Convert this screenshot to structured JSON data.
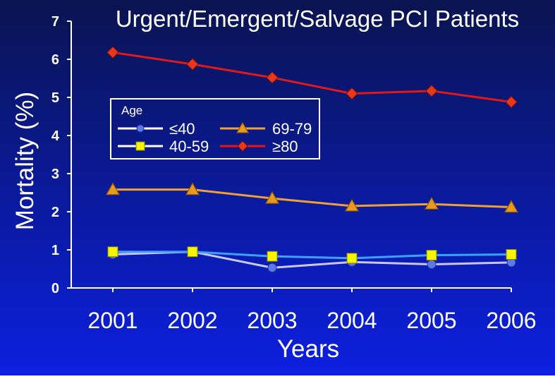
{
  "chart_data": {
    "type": "line",
    "title": "Urgent/Emergent/Salvage PCI Patients",
    "xlabel": "Years",
    "ylabel": "Mortality (%)",
    "x": [
      "2001",
      "2002",
      "2003",
      "2004",
      "2005",
      "2006"
    ],
    "yticks": [
      "0",
      "1",
      "2",
      "3",
      "4",
      "5",
      "6",
      "7"
    ],
    "ylim": [
      0,
      7
    ],
    "legend": {
      "title": "Age",
      "placement": "upper-left",
      "entries": [
        "≤40",
        "69-79",
        "40-59",
        "≥80"
      ]
    },
    "series": [
      {
        "name": "≤40",
        "values": [
          0.88,
          0.95,
          0.53,
          0.68,
          0.62,
          0.67
        ],
        "color": "#c8c8f0",
        "marker": "circle",
        "marker_color": "#5f78e8"
      },
      {
        "name": "40-59",
        "values": [
          0.95,
          0.95,
          0.83,
          0.78,
          0.86,
          0.88
        ],
        "color": "#3fa0ff",
        "marker": "square",
        "marker_color": "#f5f500"
      },
      {
        "name": "69-79",
        "values": [
          2.58,
          2.58,
          2.35,
          2.15,
          2.2,
          2.12
        ],
        "color": "#f0a030",
        "marker": "triangle",
        "marker_color": "#e89a20"
      },
      {
        "name": "≥80",
        "values": [
          6.18,
          5.87,
          5.52,
          5.1,
          5.17,
          4.88
        ],
        "color": "#e01818",
        "marker": "diamond",
        "marker_color": "#e83818"
      }
    ]
  }
}
